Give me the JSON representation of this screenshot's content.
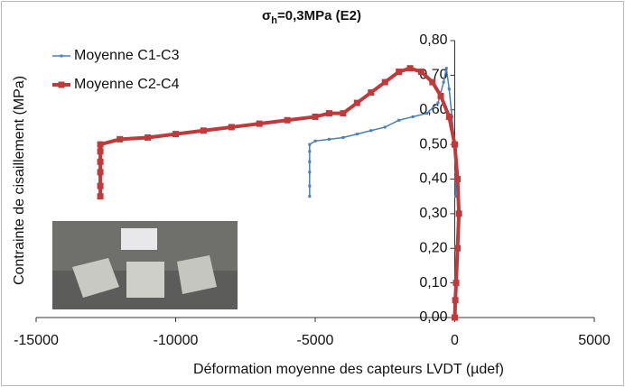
{
  "chart_data": {
    "type": "line",
    "title": [
      "σ",
      "h",
      "=0,3MPa (E2)"
    ],
    "x_label": "Déformation moyenne des capteurs LVDT (µdef)",
    "y_label": "Contrainte de cisaillement (MPa)",
    "xlim": [
      -15000,
      5000
    ],
    "xticks": [
      -15000,
      -10000,
      -5000,
      0,
      5000
    ],
    "ylim": [
      0,
      0.8
    ],
    "yticks": [
      {
        "value": 0,
        "label": "0,00"
      },
      {
        "value": 0.1,
        "label": "0,10"
      },
      {
        "value": 0.2,
        "label": "0,20"
      },
      {
        "value": 0.3,
        "label": "0,30"
      },
      {
        "value": 0.4,
        "label": "0,40"
      },
      {
        "value": 0.5,
        "label": "0,50"
      },
      {
        "value": 0.6,
        "label": "0,60"
      },
      {
        "value": 0.7,
        "label": "0,70"
      },
      {
        "value": 0.8,
        "label": "0,80"
      }
    ],
    "legend": "upper-left",
    "series": [
      {
        "name": "Moyenne C1-C3",
        "color": "#4a7ebb",
        "marker": "small",
        "x": [
          -5200,
          -5200,
          -5200,
          -5200,
          -5200,
          -5200,
          -5000,
          -4500,
          -4000,
          -3500,
          -3000,
          -2500,
          -2000,
          -1500,
          -1000,
          -600,
          -400,
          -300,
          -200,
          -100,
          0,
          30,
          30
        ],
        "values": [
          0.35,
          0.38,
          0.42,
          0.45,
          0.48,
          0.5,
          0.51,
          0.515,
          0.52,
          0.53,
          0.54,
          0.55,
          0.57,
          0.58,
          0.59,
          0.62,
          0.68,
          0.72,
          0.66,
          0.58,
          0.5,
          0.42,
          0.35
        ]
      },
      {
        "name": "Moyenne C2-C4",
        "color": "#c0393b",
        "marker": "square",
        "x": [
          -12700,
          -12700,
          -12700,
          -12700,
          -12700,
          -12700,
          -12000,
          -11000,
          -10000,
          -9000,
          -8000,
          -7000,
          -6000,
          -5000,
          -4500,
          -4000,
          -3500,
          -3000,
          -2500,
          -2000,
          -1600,
          -1200,
          -800,
          -500,
          -200,
          0,
          100,
          150,
          100,
          50,
          20,
          0
        ],
        "values": [
          0.35,
          0.38,
          0.42,
          0.45,
          0.48,
          0.5,
          0.515,
          0.52,
          0.53,
          0.54,
          0.55,
          0.56,
          0.57,
          0.58,
          0.59,
          0.59,
          0.62,
          0.65,
          0.68,
          0.71,
          0.72,
          0.71,
          0.68,
          0.64,
          0.58,
          0.5,
          0.4,
          0.3,
          0.2,
          0.1,
          0.05,
          0
        ]
      }
    ]
  }
}
